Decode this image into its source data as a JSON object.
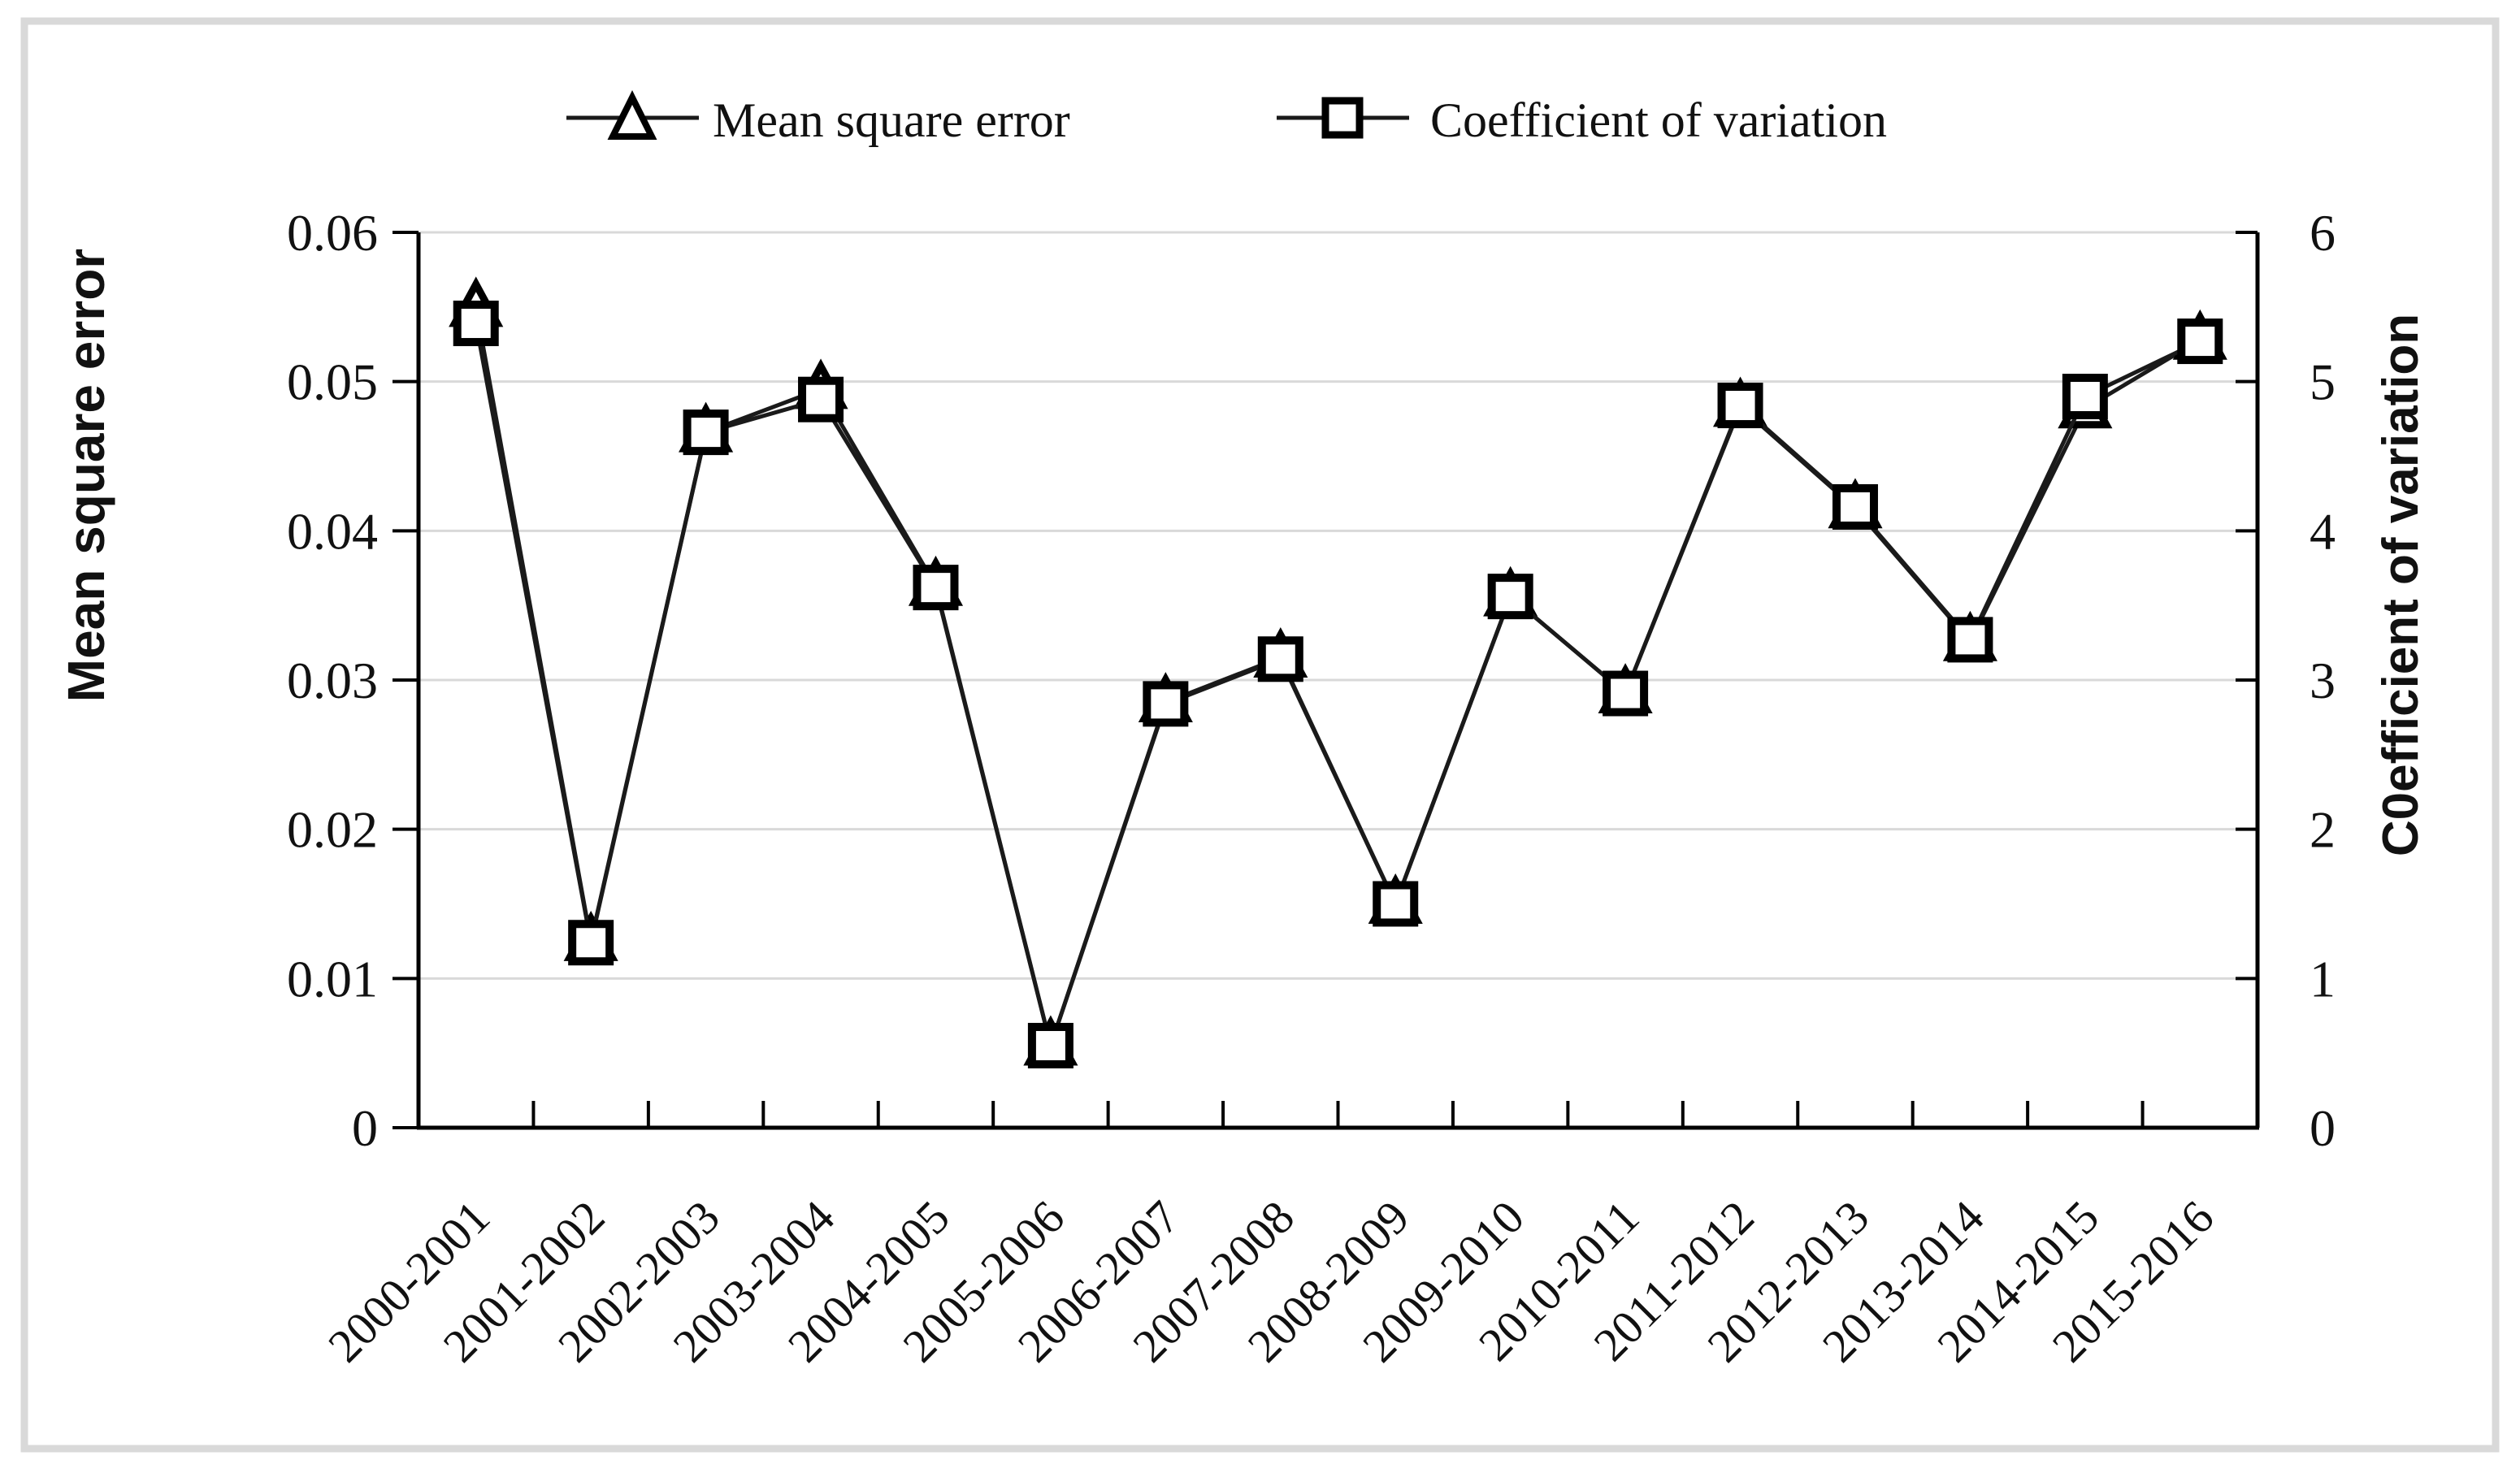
{
  "figure": {
    "background_color": "#ffffff",
    "frame_color": "#d9d9d9",
    "line_color": "#1a1a1a",
    "marker_stroke_color": "#000000",
    "marker_fill_color": "#ffffff",
    "gridline_color": "#d9d9d9"
  },
  "legend": {
    "items": [
      {
        "label": "Mean square error",
        "marker": "triangle-icon"
      },
      {
        "label": "Coefficient of variation",
        "marker": "square-icon"
      }
    ]
  },
  "chart_data": {
    "type": "line",
    "title": "",
    "categories": [
      "2000-2001",
      "2001-2002",
      "2002-2003",
      "2003-2004",
      "2004-2005",
      "2005-2006",
      "2006-2007",
      "2007-2008",
      "2008-2009",
      "2009-2010",
      "2010-2011",
      "2011-2012",
      "2012-2013",
      "2013-2014",
      "2014-2015",
      "2015-2016"
    ],
    "series": [
      {
        "name": "Mean square error",
        "axis": "left",
        "marker": "triangle",
        "values": [
          0.055,
          0.0125,
          0.0466,
          0.0495,
          0.0363,
          0.0055,
          0.0285,
          0.0315,
          0.015,
          0.0356,
          0.0291,
          0.0483,
          0.0415,
          0.0326,
          0.0482,
          0.0528
        ]
      },
      {
        "name": "Coefficient of variation",
        "axis": "right",
        "marker": "square",
        "values": [
          5.39,
          1.24,
          4.66,
          4.88,
          3.62,
          0.55,
          2.84,
          3.14,
          1.5,
          3.56,
          2.91,
          4.84,
          4.16,
          3.27,
          4.9,
          5.27
        ]
      }
    ],
    "left_axis": {
      "title": "Mean square error",
      "range": [
        0,
        0.06
      ],
      "tick_labels": [
        "0",
        "0.01",
        "0.02",
        "0.03",
        "0.04",
        "0.05",
        "0.06"
      ]
    },
    "right_axis": {
      "title": "C0efficient of variation",
      "range": [
        0,
        6
      ],
      "tick_labels": [
        "0",
        "1",
        "2",
        "3",
        "4",
        "5",
        "6"
      ]
    },
    "grid": true,
    "legend_position": "top"
  }
}
